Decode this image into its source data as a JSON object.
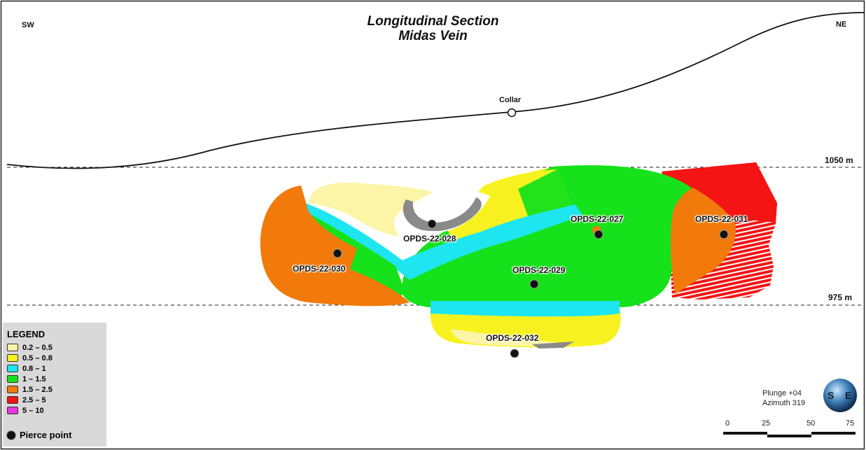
{
  "title": {
    "line1": "Longitudinal Section",
    "line2": "Midas Vein"
  },
  "directions": {
    "left": "SW",
    "right": "NE"
  },
  "elevations": {
    "upper": "1050 m",
    "lower": "975 m"
  },
  "collar_label": "Collar",
  "drill_holes": [
    "OPDS-22-027",
    "OPDS-22-028",
    "OPDS-22-029",
    "OPDS-22-030",
    "OPDS-22-031",
    "OPDS-22-032"
  ],
  "legend": {
    "title": "LEGEND",
    "items": [
      {
        "label": "0.2 – 0.5",
        "color": "#fcf5a8"
      },
      {
        "label": "0.5 – 0.8",
        "color": "#f7f21f"
      },
      {
        "label": "0.8 – 1",
        "color": "#1ee6f0"
      },
      {
        "label": "1 – 1.5",
        "color": "#16e21b"
      },
      {
        "label": "1.5 – 2.5",
        "color": "#f17a0a"
      },
      {
        "label": "2.5 – 5",
        "color": "#f41414"
      },
      {
        "label": "5 – 10",
        "color": "#ea33e0"
      }
    ],
    "pierce_label": "Pierce point"
  },
  "orientation": {
    "plunge": "Plunge +04",
    "azimuth": "Azimuth 319"
  },
  "scale_bar": {
    "ticks": [
      "0",
      "25",
      "50",
      "75"
    ]
  },
  "compass": {
    "left": "S",
    "right": "E"
  }
}
